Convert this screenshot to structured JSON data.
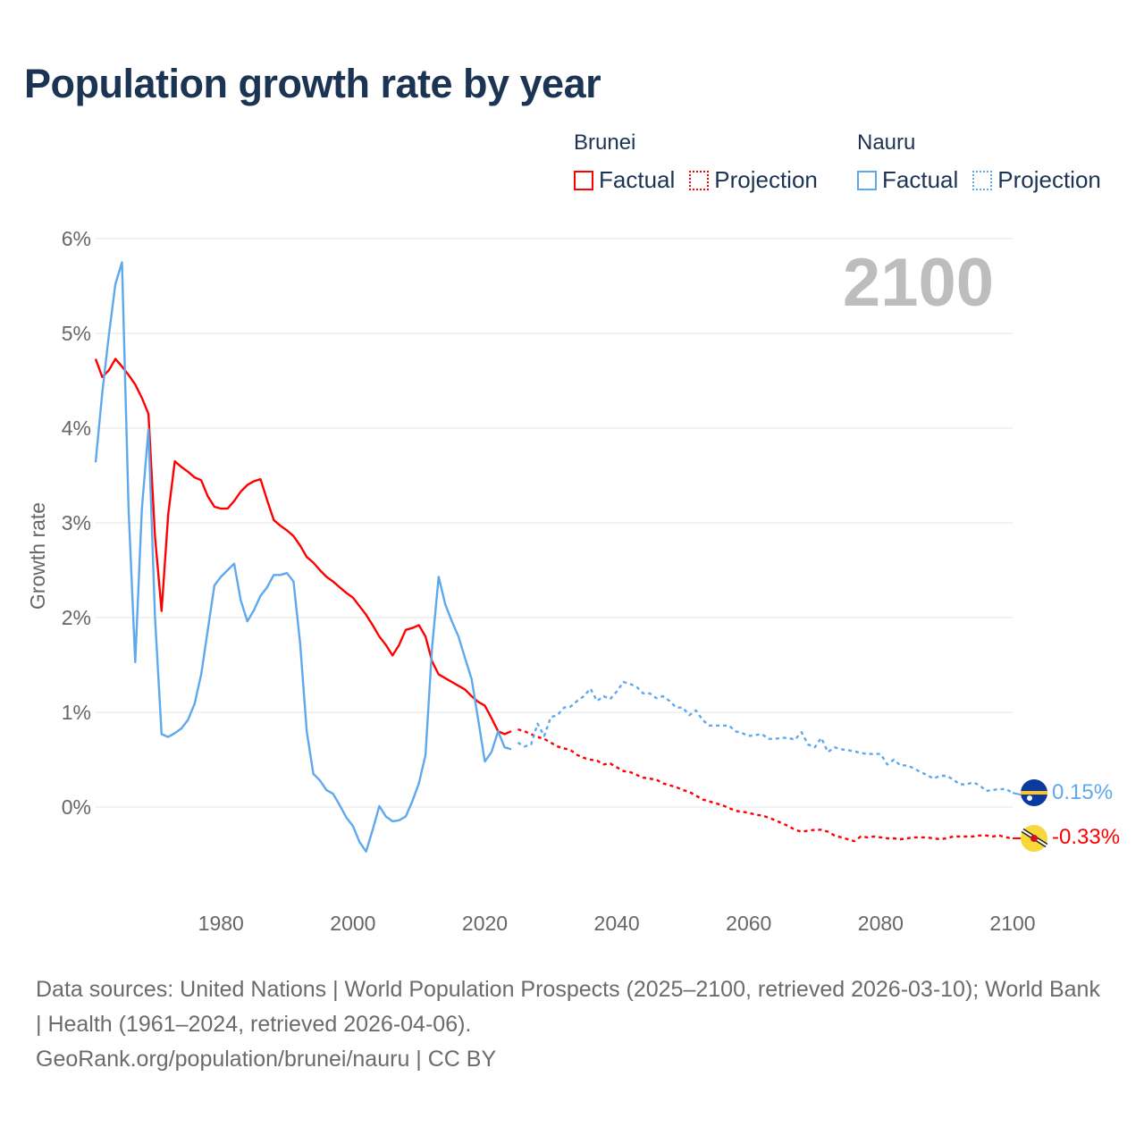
{
  "title": "Population growth rate by year",
  "legend": {
    "groups": [
      {
        "name": "Brunei",
        "factual": "Factual",
        "projection": "Projection",
        "color": "#ff0000"
      },
      {
        "name": "Nauru",
        "factual": "Factual",
        "projection": "Projection",
        "color": "#5ea8ee"
      }
    ]
  },
  "year_overlay": "2100",
  "end_labels": {
    "nauru": "0.15%",
    "brunei": "-0.33%"
  },
  "footer": {
    "sources": "Data sources: United Nations | World Population Prospects (2025–2100, retrieved 2026-03-10); World Bank | Health (1961–2024, retrieved 2026-04-06).",
    "credit": "GeoRank.org/population/brunei/nauru | CC BY"
  },
  "chart_data": {
    "type": "line",
    "title": "Population growth rate by year",
    "xlabel": "",
    "ylabel": "Growth rate",
    "xlim": [
      1961,
      2100
    ],
    "ylim": [
      -0.9,
      6
    ],
    "x_ticks": [
      1980,
      2000,
      2020,
      2040,
      2060,
      2080,
      2100
    ],
    "x_tick_labels": [
      "1980",
      "2000",
      "2020",
      "2040",
      "2060",
      "2080",
      "2100"
    ],
    "y_ticks": [
      0,
      1,
      2,
      3,
      4,
      5,
      6
    ],
    "y_tick_labels": [
      "0%",
      "1%",
      "2%",
      "3%",
      "4%",
      "5%",
      "6%"
    ],
    "grid": true,
    "legend_position": "top-right",
    "series": [
      {
        "name": "Brunei Factual",
        "color": "#ff0000",
        "style": "solid",
        "x_start": 1961,
        "values": [
          4.73,
          4.54,
          4.61,
          4.73,
          4.65,
          4.56,
          4.46,
          4.32,
          4.15,
          2.86,
          2.07,
          3.09,
          3.65,
          3.59,
          3.54,
          3.48,
          3.45,
          3.28,
          3.17,
          3.15,
          3.15,
          3.23,
          3.33,
          3.4,
          3.44,
          3.46,
          3.24,
          3.03,
          2.97,
          2.92,
          2.86,
          2.76,
          2.64,
          2.58,
          2.5,
          2.43,
          2.38,
          2.32,
          2.26,
          2.21,
          2.12,
          2.03,
          1.92,
          1.8,
          1.71,
          1.6,
          1.71,
          1.87,
          1.89,
          1.92,
          1.8,
          1.54,
          1.4,
          1.36,
          1.32,
          1.28,
          1.24,
          1.17,
          1.11,
          1.07,
          0.94,
          0.8,
          0.77,
          0.8
        ]
      },
      {
        "name": "Brunei Projection",
        "color": "#ff0000",
        "style": "dotted",
        "x_start": 2025,
        "values": [
          0.82,
          0.8,
          0.77,
          0.74,
          0.72,
          0.68,
          0.64,
          0.62,
          0.6,
          0.55,
          0.52,
          0.5,
          0.49,
          0.45,
          0.46,
          0.42,
          0.38,
          0.37,
          0.34,
          0.31,
          0.3,
          0.29,
          0.25,
          0.23,
          0.21,
          0.18,
          0.16,
          0.12,
          0.08,
          0.06,
          0.04,
          0.02,
          -0.01,
          -0.04,
          -0.05,
          -0.06,
          -0.08,
          -0.09,
          -0.11,
          -0.14,
          -0.17,
          -0.2,
          -0.24,
          -0.26,
          -0.25,
          -0.24,
          -0.24,
          -0.26,
          -0.3,
          -0.32,
          -0.34,
          -0.36,
          -0.31,
          -0.32,
          -0.31,
          -0.32,
          -0.33,
          -0.33,
          -0.34,
          -0.33,
          -0.32,
          -0.32,
          -0.32,
          -0.33,
          -0.34,
          -0.33,
          -0.31,
          -0.31,
          -0.31,
          -0.31,
          -0.3,
          -0.3,
          -0.31,
          -0.3,
          -0.32,
          -0.33
        ]
      },
      {
        "name": "Nauru Factual",
        "color": "#5ea8ee",
        "style": "solid",
        "x_start": 1961,
        "values": [
          3.64,
          4.37,
          4.98,
          5.52,
          5.75,
          3.14,
          1.53,
          3.14,
          3.99,
          2.01,
          0.77,
          0.74,
          0.78,
          0.83,
          0.92,
          1.09,
          1.4,
          1.87,
          2.34,
          2.43,
          2.5,
          2.57,
          2.18,
          1.96,
          2.08,
          2.23,
          2.32,
          2.45,
          2.45,
          2.47,
          2.38,
          1.73,
          0.8,
          0.35,
          0.28,
          0.18,
          0.14,
          0.02,
          -0.11,
          -0.2,
          -0.37,
          -0.47,
          -0.24,
          0.01,
          -0.1,
          -0.15,
          -0.14,
          -0.1,
          0.06,
          0.25,
          0.55,
          1.68,
          2.43,
          2.14,
          1.96,
          1.8,
          1.57,
          1.35,
          0.92,
          0.48,
          0.58,
          0.8,
          0.63,
          0.61
        ]
      },
      {
        "name": "Nauru Projection",
        "color": "#5ea8ee",
        "style": "dotted",
        "x_start": 2025,
        "values": [
          0.68,
          0.64,
          0.66,
          0.88,
          0.75,
          0.95,
          0.97,
          1.05,
          1.06,
          1.12,
          1.17,
          1.25,
          1.12,
          1.17,
          1.14,
          1.22,
          1.32,
          1.3,
          1.27,
          1.2,
          1.2,
          1.15,
          1.17,
          1.12,
          1.05,
          1.05,
          0.97,
          1.02,
          0.92,
          0.86,
          0.86,
          0.86,
          0.86,
          0.8,
          0.78,
          0.75,
          0.76,
          0.77,
          0.72,
          0.72,
          0.73,
          0.73,
          0.71,
          0.79,
          0.66,
          0.63,
          0.73,
          0.58,
          0.63,
          0.61,
          0.6,
          0.59,
          0.57,
          0.56,
          0.56,
          0.56,
          0.45,
          0.5,
          0.44,
          0.44,
          0.41,
          0.37,
          0.34,
          0.3,
          0.33,
          0.33,
          0.29,
          0.24,
          0.24,
          0.26,
          0.23,
          0.17,
          0.18,
          0.19,
          0.19,
          0.15
        ]
      }
    ]
  }
}
